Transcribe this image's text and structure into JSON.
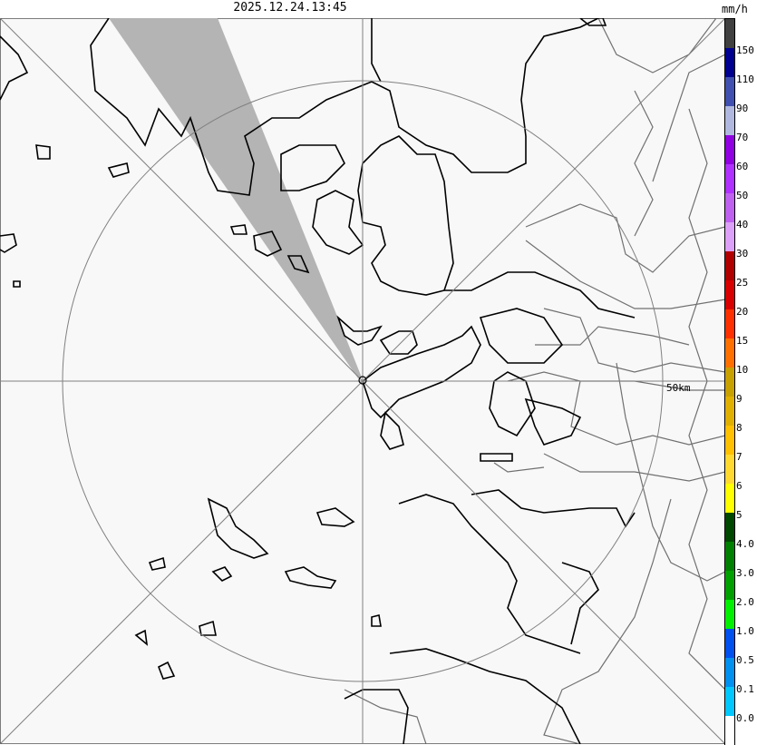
{
  "timestamp": "2025.12.24.13:45",
  "range_label": "50km",
  "legend": {
    "unit": "mm/h",
    "bands": [
      {
        "color": "#404040",
        "label": ""
      },
      {
        "color": "#000090",
        "label": "150"
      },
      {
        "color": "#4050b0",
        "label": "110"
      },
      {
        "color": "#b0b8e0",
        "label": "90"
      },
      {
        "color": "#9000e0",
        "label": "70"
      },
      {
        "color": "#b030ff",
        "label": "60"
      },
      {
        "color": "#c060f0",
        "label": "50"
      },
      {
        "color": "#dca0f8",
        "label": "40"
      },
      {
        "color": "#b00000",
        "label": "30"
      },
      {
        "color": "#d80000",
        "label": "25"
      },
      {
        "color": "#ff3000",
        "label": "20"
      },
      {
        "color": "#ff7000",
        "label": "15"
      },
      {
        "color": "#c8a000",
        "label": "10"
      },
      {
        "color": "#e0b000",
        "label": "9"
      },
      {
        "color": "#ffc000",
        "label": "8"
      },
      {
        "color": "#ffd830",
        "label": "7"
      },
      {
        "color": "#ffff00",
        "label": "6"
      },
      {
        "color": "#004800",
        "label": "5"
      },
      {
        "color": "#008000",
        "label": "4.0"
      },
      {
        "color": "#00a000",
        "label": "3.0"
      },
      {
        "color": "#00f000",
        "label": "2.0"
      },
      {
        "color": "#0050f0",
        "label": "1.0"
      },
      {
        "color": "#0090f0",
        "label": "0.5"
      },
      {
        "color": "#00c8ff",
        "label": "0.1"
      },
      {
        "color": "#ffffff",
        "label": "0.0"
      }
    ]
  },
  "colors": {
    "background": "#f8f8f8",
    "coast": "#000000",
    "boundary": "#707070",
    "beam_shadow": "#b4b4b4",
    "grid": "#808080"
  }
}
